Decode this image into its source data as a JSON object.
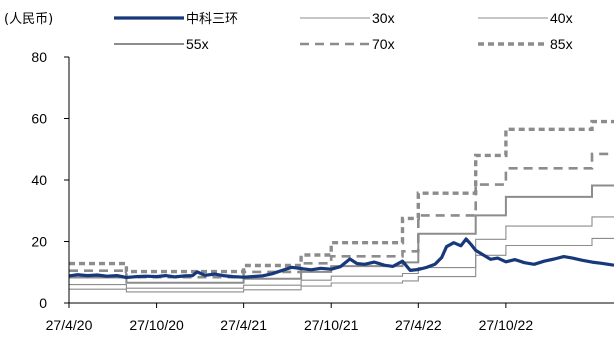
{
  "unit_label": "(人民币)",
  "colors": {
    "primary": "#17387b",
    "bands": "#8c8c8c",
    "axis": "#000000"
  },
  "chart_data": {
    "type": "line",
    "title": "",
    "ylim": [
      0,
      80
    ],
    "yticks": [
      0,
      20,
      40,
      60,
      80
    ],
    "x_range": [
      "2020-04-27",
      "2023-06-10"
    ],
    "xticks": [
      {
        "date": "2020-04-27",
        "label": "27/4/20"
      },
      {
        "date": "2020-10-27",
        "label": "27/10/20"
      },
      {
        "date": "2021-04-27",
        "label": "27/4/21"
      },
      {
        "date": "2021-10-27",
        "label": "27/10/21"
      },
      {
        "date": "2022-04-27",
        "label": "27/4/22"
      },
      {
        "date": "2022-10-27",
        "label": "27/10/22"
      }
    ],
    "legend_position": "top",
    "grid": false,
    "series": [
      {
        "name": "中科三环",
        "style": "solid-thick",
        "color": "#17387b",
        "points": [
          [
            "2020-04-27",
            8.8
          ],
          [
            "2020-05-15",
            9.2
          ],
          [
            "2020-06-05",
            8.9
          ],
          [
            "2020-06-25",
            9.1
          ],
          [
            "2020-07-15",
            8.7
          ],
          [
            "2020-08-05",
            8.9
          ],
          [
            "2020-08-25",
            8.3
          ],
          [
            "2020-09-15",
            8.6
          ],
          [
            "2020-10-05",
            8.7
          ],
          [
            "2020-10-27",
            8.6
          ],
          [
            "2020-11-15",
            8.9
          ],
          [
            "2020-12-05",
            8.5
          ],
          [
            "2020-12-25",
            8.8
          ],
          [
            "2021-01-10",
            8.9
          ],
          [
            "2021-01-20",
            10.1
          ],
          [
            "2021-02-05",
            9.0
          ],
          [
            "2021-02-25",
            9.4
          ],
          [
            "2021-03-15",
            8.9
          ],
          [
            "2021-04-05",
            8.6
          ],
          [
            "2021-04-27",
            8.4
          ],
          [
            "2021-05-15",
            8.6
          ],
          [
            "2021-06-05",
            8.8
          ],
          [
            "2021-06-25",
            9.5
          ],
          [
            "2021-07-15",
            10.5
          ],
          [
            "2021-08-05",
            11.6
          ],
          [
            "2021-08-25",
            11.2
          ],
          [
            "2021-09-15",
            10.8
          ],
          [
            "2021-10-05",
            11.3
          ],
          [
            "2021-10-27",
            11.0
          ],
          [
            "2021-11-15",
            11.8
          ],
          [
            "2021-12-05",
            14.3
          ],
          [
            "2021-12-20",
            12.8
          ],
          [
            "2022-01-05",
            12.6
          ],
          [
            "2022-01-25",
            13.3
          ],
          [
            "2022-02-15",
            12.3
          ],
          [
            "2022-03-05",
            11.9
          ],
          [
            "2022-03-25",
            13.6
          ],
          [
            "2022-04-10",
            10.6
          ],
          [
            "2022-04-27",
            10.9
          ],
          [
            "2022-05-15",
            11.6
          ],
          [
            "2022-06-01",
            12.6
          ],
          [
            "2022-06-15",
            14.8
          ],
          [
            "2022-06-25",
            18.3
          ],
          [
            "2022-07-10",
            19.6
          ],
          [
            "2022-07-25",
            18.6
          ],
          [
            "2022-08-05",
            20.8
          ],
          [
            "2022-08-15",
            19.1
          ],
          [
            "2022-08-25",
            17.1
          ],
          [
            "2022-09-10",
            15.6
          ],
          [
            "2022-09-25",
            14.2
          ],
          [
            "2022-10-10",
            14.6
          ],
          [
            "2022-10-27",
            13.4
          ],
          [
            "2022-11-15",
            14.1
          ],
          [
            "2022-12-05",
            13.1
          ],
          [
            "2022-12-25",
            12.6
          ],
          [
            "2023-01-15",
            13.6
          ],
          [
            "2023-02-05",
            14.3
          ],
          [
            "2023-02-25",
            15.1
          ],
          [
            "2023-03-15",
            14.6
          ],
          [
            "2023-04-05",
            13.9
          ],
          [
            "2023-04-25",
            13.3
          ],
          [
            "2023-05-15",
            12.9
          ],
          [
            "2023-06-10",
            12.3
          ]
        ]
      },
      {
        "name": "30x",
        "style": "solid-thin",
        "color": "#8c8c8c",
        "steps": [
          [
            "2020-04-27",
            4.5
          ],
          [
            "2020-08-25",
            3.6
          ],
          [
            "2021-04-27",
            4.3
          ],
          [
            "2021-08-25",
            5.5
          ],
          [
            "2021-10-27",
            6.5
          ],
          [
            "2022-03-25",
            7.2
          ],
          [
            "2022-04-27",
            8.6
          ],
          [
            "2022-08-25",
            15.5
          ],
          [
            "2022-10-27",
            18.7
          ],
          [
            "2023-04-25",
            21.0
          ]
        ]
      },
      {
        "name": "40x",
        "style": "solid-thin",
        "color": "#8c8c8c",
        "steps": [
          [
            "2020-04-27",
            6.0
          ],
          [
            "2020-08-25",
            4.8
          ],
          [
            "2021-04-27",
            5.8
          ],
          [
            "2021-08-25",
            7.4
          ],
          [
            "2021-10-27",
            8.7
          ],
          [
            "2022-03-25",
            9.6
          ],
          [
            "2022-04-27",
            11.5
          ],
          [
            "2022-08-25",
            20.7
          ],
          [
            "2022-10-27",
            25.0
          ],
          [
            "2023-04-25",
            28.0
          ]
        ]
      },
      {
        "name": "55x",
        "style": "solid-medium",
        "color": "#8c8c8c",
        "steps": [
          [
            "2020-04-27",
            8.3
          ],
          [
            "2020-08-25",
            6.6
          ],
          [
            "2021-04-27",
            7.9
          ],
          [
            "2021-08-25",
            10.1
          ],
          [
            "2021-10-27",
            12.0
          ],
          [
            "2022-03-25",
            13.2
          ],
          [
            "2022-04-27",
            22.5
          ],
          [
            "2022-08-25",
            28.5
          ],
          [
            "2022-10-27",
            34.5
          ],
          [
            "2023-04-25",
            38.2
          ]
        ]
      },
      {
        "name": "70x",
        "style": "dashed",
        "color": "#8c8c8c",
        "steps": [
          [
            "2020-04-27",
            10.5
          ],
          [
            "2020-08-25",
            8.4
          ],
          [
            "2021-04-27",
            10.1
          ],
          [
            "2021-08-25",
            12.9
          ],
          [
            "2021-10-27",
            15.2
          ],
          [
            "2022-03-25",
            16.8
          ],
          [
            "2022-04-27",
            28.5
          ],
          [
            "2022-08-25",
            38.5
          ],
          [
            "2022-10-27",
            43.8
          ],
          [
            "2023-04-25",
            48.5
          ]
        ]
      },
      {
        "name": "85x",
        "style": "dashed-thick",
        "color": "#8c8c8c",
        "steps": [
          [
            "2020-04-27",
            12.8
          ],
          [
            "2020-08-25",
            10.2
          ],
          [
            "2021-04-27",
            12.2
          ],
          [
            "2021-08-25",
            15.6
          ],
          [
            "2021-10-27",
            19.6
          ],
          [
            "2022-03-25",
            27.5
          ],
          [
            "2022-04-27",
            35.7
          ],
          [
            "2022-08-25",
            48.0
          ],
          [
            "2022-10-27",
            56.5
          ],
          [
            "2023-04-25",
            59.0
          ]
        ]
      }
    ]
  }
}
